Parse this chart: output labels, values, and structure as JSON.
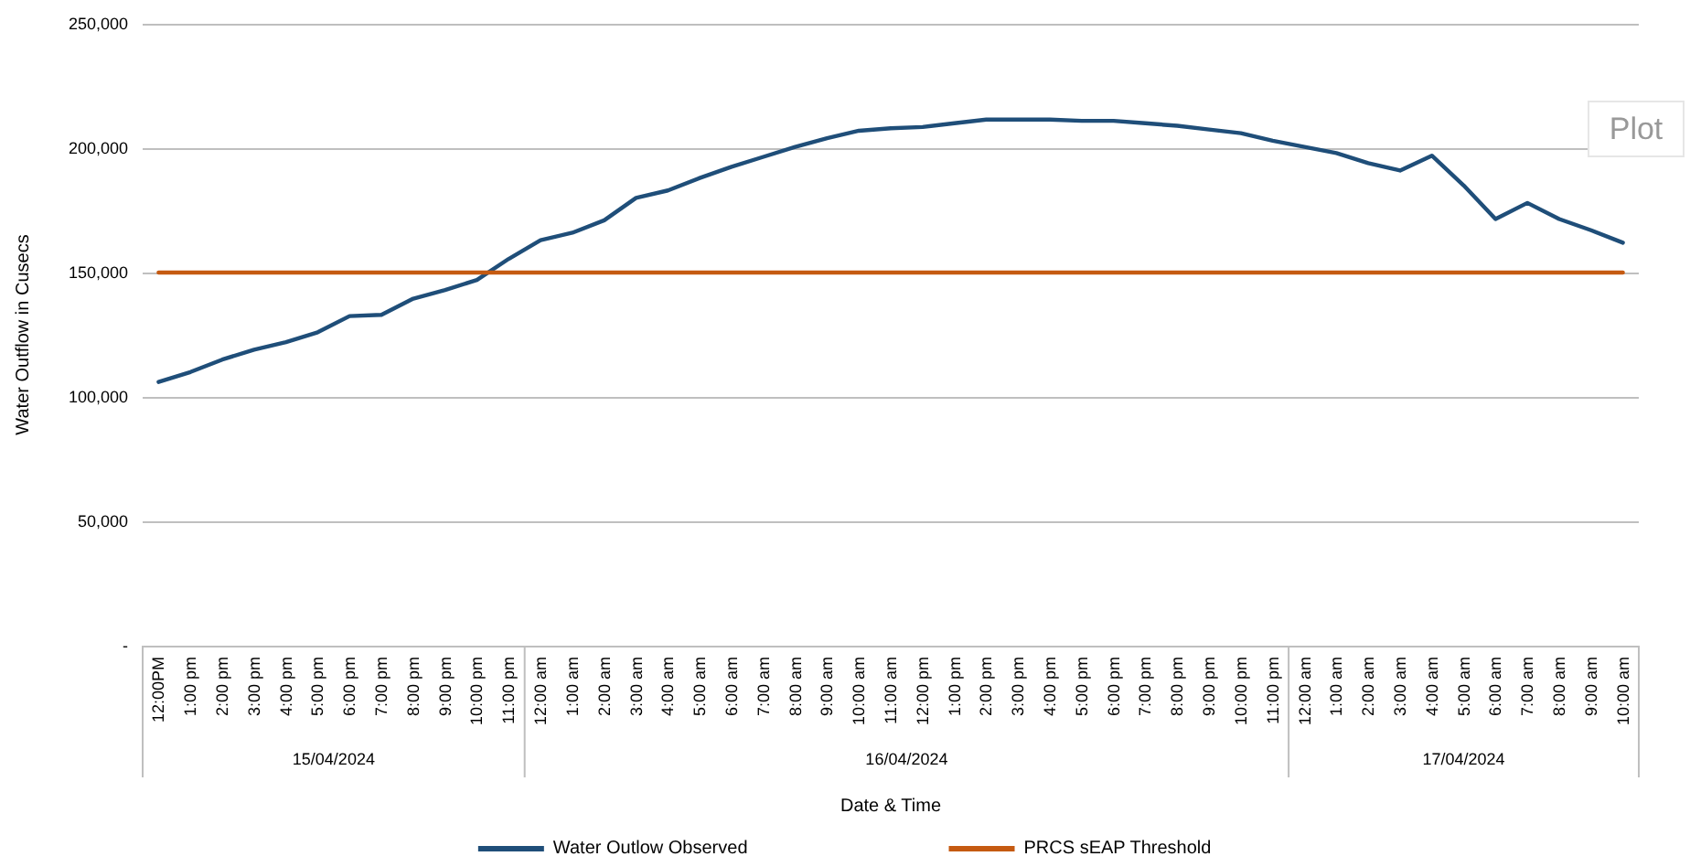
{
  "chart_data": {
    "type": "line",
    "xlabel": "Date & Time",
    "ylabel": "Water Outflow in Cusecs",
    "x": [
      "2024-04-15T12:00",
      "2024-04-15T13:00",
      "2024-04-15T14:00",
      "2024-04-15T15:00",
      "2024-04-15T16:00",
      "2024-04-15T17:00",
      "2024-04-15T18:00",
      "2024-04-15T19:00",
      "2024-04-15T20:00",
      "2024-04-15T21:00",
      "2024-04-15T22:00",
      "2024-04-15T23:00",
      "2024-04-16T00:00",
      "2024-04-16T01:00",
      "2024-04-16T02:00",
      "2024-04-16T03:00",
      "2024-04-16T04:00",
      "2024-04-16T05:00",
      "2024-04-16T06:00",
      "2024-04-16T07:00",
      "2024-04-16T08:00",
      "2024-04-16T09:00",
      "2024-04-16T10:00",
      "2024-04-16T11:00",
      "2024-04-16T12:00",
      "2024-04-16T13:00",
      "2024-04-16T14:00",
      "2024-04-16T15:00",
      "2024-04-16T16:00",
      "2024-04-16T17:00",
      "2024-04-16T18:00",
      "2024-04-16T19:00",
      "2024-04-16T20:00",
      "2024-04-16T21:00",
      "2024-04-16T22:00",
      "2024-04-16T23:00",
      "2024-04-17T00:00",
      "2024-04-17T01:00",
      "2024-04-17T02:00",
      "2024-04-17T03:00",
      "2024-04-17T04:00",
      "2024-04-17T05:00",
      "2024-04-17T06:00",
      "2024-04-17T07:00",
      "2024-04-17T08:00",
      "2024-04-17T09:00",
      "2024-04-17T10:00"
    ],
    "xlim": [
      "2024-04-15T11:30",
      "2024-04-17T10:30"
    ],
    "xticks": [
      {
        "value": "2024-04-15T12:00",
        "label": "12:00PM"
      },
      {
        "value": "2024-04-15T13:00",
        "label": "1:00 pm"
      },
      {
        "value": "2024-04-15T14:00",
        "label": "2:00 pm"
      },
      {
        "value": "2024-04-15T15:00",
        "label": "3:00 pm"
      },
      {
        "value": "2024-04-15T16:00",
        "label": "4:00 pm"
      },
      {
        "value": "2024-04-15T17:00",
        "label": "5:00 pm"
      },
      {
        "value": "2024-04-15T18:00",
        "label": "6:00 pm"
      },
      {
        "value": "2024-04-15T19:00",
        "label": "7:00 pm"
      },
      {
        "value": "2024-04-15T20:00",
        "label": "8:00 pm"
      },
      {
        "value": "2024-04-15T21:00",
        "label": "9:00 pm"
      },
      {
        "value": "2024-04-15T22:00",
        "label": "10:00 pm"
      },
      {
        "value": "2024-04-15T23:00",
        "label": "11:00 pm"
      },
      {
        "value": "2024-04-16T00:00",
        "label": "12:00 am"
      },
      {
        "value": "2024-04-16T01:00",
        "label": "1:00 am"
      },
      {
        "value": "2024-04-16T02:00",
        "label": "2:00 am"
      },
      {
        "value": "2024-04-16T03:00",
        "label": "3:00 am"
      },
      {
        "value": "2024-04-16T04:00",
        "label": "4:00 am"
      },
      {
        "value": "2024-04-16T05:00",
        "label": "5:00 am"
      },
      {
        "value": "2024-04-16T06:00",
        "label": "6:00 am"
      },
      {
        "value": "2024-04-16T07:00",
        "label": "7:00 am"
      },
      {
        "value": "2024-04-16T08:00",
        "label": "8:00 am"
      },
      {
        "value": "2024-04-16T09:00",
        "label": "9:00 am"
      },
      {
        "value": "2024-04-16T10:00",
        "label": "10:00 am"
      },
      {
        "value": "2024-04-16T11:00",
        "label": "11:00 am"
      },
      {
        "value": "2024-04-16T12:00",
        "label": "12:00 pm"
      },
      {
        "value": "2024-04-16T13:00",
        "label": "1:00 pm"
      },
      {
        "value": "2024-04-16T14:00",
        "label": "2:00 pm"
      },
      {
        "value": "2024-04-16T15:00",
        "label": "3:00 pm"
      },
      {
        "value": "2024-04-16T16:00",
        "label": "4:00 pm"
      },
      {
        "value": "2024-04-16T17:00",
        "label": "5:00 pm"
      },
      {
        "value": "2024-04-16T18:00",
        "label": "6:00 pm"
      },
      {
        "value": "2024-04-16T19:00",
        "label": "7:00 pm"
      },
      {
        "value": "2024-04-16T20:00",
        "label": "8:00 pm"
      },
      {
        "value": "2024-04-16T21:00",
        "label": "9:00 pm"
      },
      {
        "value": "2024-04-16T22:00",
        "label": "10:00 pm"
      },
      {
        "value": "2024-04-16T23:00",
        "label": "11:00 pm"
      },
      {
        "value": "2024-04-17T00:00",
        "label": "12:00 am"
      },
      {
        "value": "2024-04-17T01:00",
        "label": "1:00 am"
      },
      {
        "value": "2024-04-17T02:00",
        "label": "2:00 am"
      },
      {
        "value": "2024-04-17T03:00",
        "label": "3:00 am"
      },
      {
        "value": "2024-04-17T04:00",
        "label": "4:00 am"
      },
      {
        "value": "2024-04-17T05:00",
        "label": "5:00 am"
      },
      {
        "value": "2024-04-17T06:00",
        "label": "6:00 am"
      },
      {
        "value": "2024-04-17T07:00",
        "label": "7:00 am"
      },
      {
        "value": "2024-04-17T08:00",
        "label": "8:00 am"
      },
      {
        "value": "2024-04-17T09:00",
        "label": "9:00 am"
      },
      {
        "value": "2024-04-17T10:00",
        "label": "10:00 am"
      }
    ],
    "ylim": [
      0,
      250000
    ],
    "yticks": [
      {
        "value": 0,
        "label": "-"
      },
      {
        "value": 50000,
        "label": "50,000"
      },
      {
        "value": 100000,
        "label": "100,000"
      },
      {
        "value": 150000,
        "label": "150,000"
      },
      {
        "value": 200000,
        "label": "200,000"
      },
      {
        "value": 250000,
        "label": "250,000"
      }
    ],
    "series": [
      {
        "name": "Water Outlow Observed",
        "color": "#1f4e79",
        "values": [
          106000,
          110000,
          115000,
          119000,
          122000,
          126000,
          132500,
          133000,
          139500,
          143000,
          147000,
          155500,
          163000,
          166000,
          171000,
          180000,
          183000,
          188000,
          192500,
          196500,
          200500,
          204000,
          207000,
          208000,
          208500,
          210000,
          211500,
          211500,
          211500,
          211000,
          211000,
          210000,
          209000,
          207500,
          206000,
          203000,
          200500,
          198000,
          194000,
          191000,
          197000,
          185000,
          171500,
          178000,
          171500,
          167000,
          162000
        ]
      },
      {
        "name": "PRCS sEAP Threshold",
        "color": "#c55a11",
        "values": [
          150000,
          150000,
          150000,
          150000,
          150000,
          150000,
          150000,
          150000,
          150000,
          150000,
          150000,
          150000,
          150000,
          150000,
          150000,
          150000,
          150000,
          150000,
          150000,
          150000,
          150000,
          150000,
          150000,
          150000,
          150000,
          150000,
          150000,
          150000,
          150000,
          150000,
          150000,
          150000,
          150000,
          150000,
          150000,
          150000,
          150000,
          150000,
          150000,
          150000,
          150000,
          150000,
          150000,
          150000,
          150000,
          150000,
          150000
        ]
      }
    ],
    "annotations": [
      "15/04/2024",
      "16/04/2024",
      "17/04/2024",
      "Plot"
    ],
    "grid": "y",
    "legend": "bottom",
    "marker": "none",
    "line_style": "solid"
  }
}
